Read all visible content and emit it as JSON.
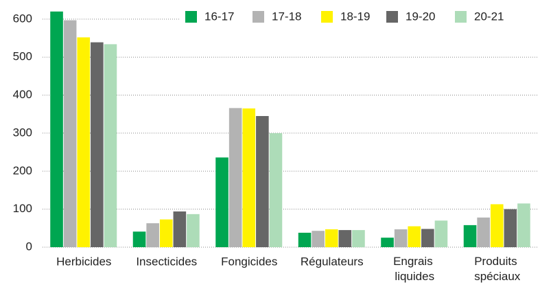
{
  "chart_data": {
    "type": "bar",
    "categories": [
      "Herbicides",
      "Insecticides",
      "Fongicides",
      "Régulateurs",
      "Engrais liquides",
      "Produits spéciaux"
    ],
    "series": [
      {
        "name": "16-17",
        "color": "#00a651",
        "values": [
          620,
          41,
          236,
          38,
          25,
          58
        ]
      },
      {
        "name": "17-18",
        "color": "#b3b3b3",
        "values": [
          597,
          63,
          366,
          43,
          47,
          78
        ]
      },
      {
        "name": "18-19",
        "color": "#fff200",
        "values": [
          552,
          73,
          365,
          47,
          55,
          113
        ]
      },
      {
        "name": "19-20",
        "color": "#666666",
        "values": [
          539,
          94,
          345,
          45,
          48,
          100
        ]
      },
      {
        "name": "20-21",
        "color": "#addcb8",
        "values": [
          534,
          87,
          300,
          45,
          70,
          115
        ]
      }
    ],
    "ylim": [
      0,
      625
    ],
    "yticks": [
      0,
      100,
      200,
      300,
      400,
      500,
      600
    ],
    "grid": true
  }
}
